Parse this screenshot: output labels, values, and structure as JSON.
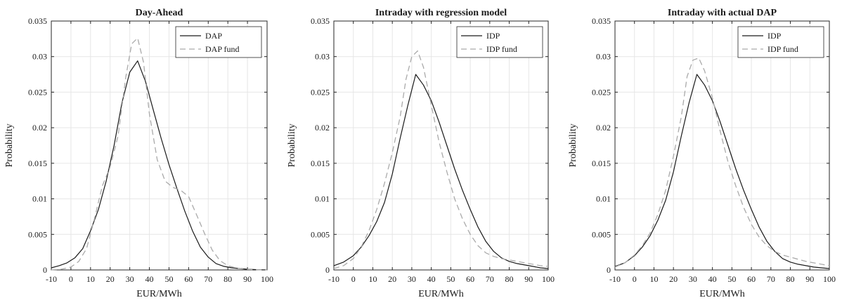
{
  "colors": {
    "solid": "#1a1a1a",
    "dashed": "#aaaaaa",
    "grid": "#e6e6e6",
    "axis": "#262626",
    "background": "#ffffff"
  },
  "chart_data": [
    {
      "type": "line",
      "title": "Day-Ahead",
      "xlabel": "EUR/MWh",
      "ylabel": "Probability",
      "xlim": [
        -10,
        100
      ],
      "ylim": [
        0,
        0.035
      ],
      "xticks": [
        "-10",
        "0",
        "10",
        "20",
        "30",
        "40",
        "50",
        "60",
        "70",
        "80",
        "90",
        "100"
      ],
      "yticks": [
        "0",
        "0.005",
        "0.01",
        "0.015",
        "0.02",
        "0.025",
        "0.03",
        "0.035"
      ],
      "grid": true,
      "legend": "top-right",
      "series": [
        {
          "name": "DAP",
          "style": "solid",
          "x": [
            -10,
            -6,
            -2,
            2,
            6,
            10,
            14,
            18,
            22,
            26,
            30,
            34,
            38,
            42,
            46,
            50,
            54,
            58,
            62,
            66,
            70,
            74,
            78,
            82,
            86,
            90,
            94,
            98,
            100
          ],
          "y": [
            0.0003,
            0.0006,
            0.001,
            0.0017,
            0.003,
            0.0055,
            0.0085,
            0.0125,
            0.0175,
            0.0235,
            0.0278,
            0.0294,
            0.0265,
            0.0225,
            0.0185,
            0.0148,
            0.0115,
            0.0083,
            0.0055,
            0.0032,
            0.0018,
            0.0009,
            0.0005,
            0.0003,
            0.0002,
            0.0001,
            5e-05,
            2e-05,
            1e-05
          ]
        },
        {
          "name": "DAP fund",
          "style": "dashed",
          "x": [
            -10,
            -5,
            0,
            4,
            8,
            12,
            16,
            20,
            24,
            28,
            31,
            34,
            37,
            40,
            44,
            48,
            52,
            56,
            60,
            64,
            68,
            72,
            76,
            80,
            84,
            88,
            92,
            96,
            100
          ],
          "y": [
            0.0,
            0.0001,
            0.0004,
            0.0012,
            0.003,
            0.0072,
            0.0118,
            0.0145,
            0.0188,
            0.0272,
            0.0318,
            0.0326,
            0.0292,
            0.022,
            0.0155,
            0.0125,
            0.0116,
            0.0112,
            0.0103,
            0.0078,
            0.0052,
            0.0028,
            0.0013,
            0.0006,
            0.0003,
            0.0001,
            5e-05,
            2e-05,
            0.0
          ]
        }
      ]
    },
    {
      "type": "line",
      "title": "Intraday with regression model",
      "xlabel": "EUR/MWh",
      "ylabel": "Probability",
      "xlim": [
        -10,
        100
      ],
      "ylim": [
        0,
        0.035
      ],
      "xticks": [
        "-10",
        "0",
        "10",
        "20",
        "30",
        "40",
        "50",
        "60",
        "70",
        "80",
        "90",
        "100"
      ],
      "yticks": [
        "0",
        "0.005",
        "0.01",
        "0.015",
        "0.02",
        "0.025",
        "0.03",
        "0.035"
      ],
      "grid": true,
      "legend": "top-right",
      "series": [
        {
          "name": "IDP",
          "style": "solid",
          "x": [
            -10,
            -5,
            0,
            4,
            8,
            12,
            16,
            20,
            24,
            28,
            32,
            36,
            40,
            44,
            48,
            52,
            56,
            60,
            64,
            68,
            72,
            76,
            80,
            84,
            88,
            92,
            96,
            100
          ],
          "y": [
            0.0006,
            0.0011,
            0.002,
            0.0032,
            0.0048,
            0.0068,
            0.0095,
            0.0135,
            0.0185,
            0.0232,
            0.0275,
            0.026,
            0.0238,
            0.0208,
            0.0175,
            0.0142,
            0.0112,
            0.0085,
            0.006,
            0.004,
            0.0026,
            0.0017,
            0.0012,
            0.0009,
            0.0007,
            0.0005,
            0.0003,
            0.0002
          ]
        },
        {
          "name": "IDP fund",
          "style": "dashed",
          "x": [
            -10,
            -5,
            0,
            4,
            8,
            12,
            16,
            20,
            24,
            27,
            30,
            33,
            36,
            40,
            44,
            48,
            52,
            56,
            60,
            64,
            68,
            72,
            76,
            80,
            84,
            88,
            92,
            96,
            100
          ],
          "y": [
            0.0002,
            0.0006,
            0.0016,
            0.0032,
            0.0055,
            0.0085,
            0.0122,
            0.0165,
            0.0215,
            0.0268,
            0.03,
            0.0308,
            0.0285,
            0.0232,
            0.018,
            0.0138,
            0.01,
            0.0072,
            0.005,
            0.0034,
            0.0024,
            0.0019,
            0.0016,
            0.0014,
            0.0012,
            0.001,
            0.0008,
            0.0006,
            0.0005
          ]
        }
      ]
    },
    {
      "type": "line",
      "title": "Intraday with actual DAP",
      "xlabel": "EUR/MWh",
      "ylabel": "Probability",
      "xlim": [
        -10,
        100
      ],
      "ylim": [
        0,
        0.035
      ],
      "xticks": [
        "-10",
        "0",
        "10",
        "20",
        "30",
        "40",
        "50",
        "60",
        "70",
        "80",
        "90",
        "100"
      ],
      "yticks": [
        "0",
        "0.005",
        "0.01",
        "0.015",
        "0.02",
        "0.025",
        "0.03",
        "0.035"
      ],
      "grid": true,
      "legend": "top-right",
      "series": [
        {
          "name": "IDP",
          "style": "solid",
          "x": [
            -10,
            -5,
            0,
            4,
            8,
            12,
            16,
            20,
            24,
            28,
            32,
            36,
            40,
            44,
            48,
            52,
            56,
            60,
            64,
            68,
            72,
            76,
            80,
            84,
            88,
            92,
            96,
            100
          ],
          "y": [
            0.0005,
            0.001,
            0.002,
            0.0032,
            0.0048,
            0.007,
            0.0098,
            0.0138,
            0.0188,
            0.0235,
            0.0275,
            0.026,
            0.0238,
            0.0208,
            0.0175,
            0.0142,
            0.0112,
            0.0085,
            0.006,
            0.004,
            0.0026,
            0.0016,
            0.0011,
            0.0008,
            0.0006,
            0.0004,
            0.0003,
            0.0002
          ]
        },
        {
          "name": "IDP fund",
          "style": "dashed",
          "x": [
            -10,
            -5,
            0,
            4,
            8,
            12,
            16,
            20,
            24,
            27,
            30,
            33,
            36,
            40,
            44,
            48,
            52,
            56,
            60,
            64,
            68,
            72,
            76,
            80,
            84,
            88,
            92,
            96,
            100
          ],
          "y": [
            0.0004,
            0.001,
            0.0021,
            0.0034,
            0.0052,
            0.0078,
            0.0112,
            0.016,
            0.0215,
            0.0272,
            0.0295,
            0.0298,
            0.028,
            0.0242,
            0.0195,
            0.0152,
            0.0118,
            0.0088,
            0.0064,
            0.0046,
            0.0034,
            0.0026,
            0.0021,
            0.0018,
            0.0015,
            0.0012,
            0.001,
            0.0008,
            0.0006
          ]
        }
      ]
    }
  ]
}
